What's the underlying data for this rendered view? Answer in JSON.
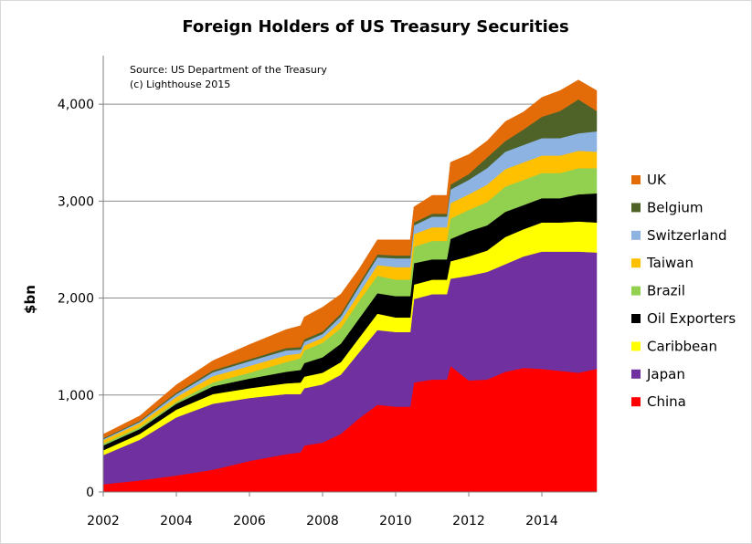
{
  "chart_data": {
    "type": "area",
    "stacked": true,
    "title": "Foreign Holders of US Treasury Securities",
    "ylabel": "$bn",
    "xlabel": "",
    "source_note": "Source: US Department of the Treasury",
    "copyright_note": "(c) Lighthouse 2015",
    "xlim": [
      2002,
      2015.5
    ],
    "ylim": [
      0,
      4500
    ],
    "x_ticks": [
      2002,
      2004,
      2006,
      2008,
      2010,
      2012,
      2014
    ],
    "x_tick_labels": [
      "2002",
      "2004",
      "2006",
      "2008",
      "2010",
      "2012",
      "2014"
    ],
    "y_ticks": [
      0,
      1000,
      2000,
      3000,
      4000
    ],
    "y_tick_labels": [
      "0",
      "1,000",
      "2,000",
      "3,000",
      "4,000"
    ],
    "grid": "horizontal",
    "legend_position": "right",
    "x": [
      2002.0,
      2003.0,
      2004.0,
      2005.0,
      2006.0,
      2007.0,
      2007.4,
      2007.5,
      2008.0,
      2008.5,
      2009.0,
      2009.5,
      2010.0,
      2010.4,
      2010.5,
      2011.0,
      2011.4,
      2011.5,
      2012.0,
      2012.5,
      2013.0,
      2013.5,
      2014.0,
      2014.5,
      2015.0,
      2015.5
    ],
    "series": [
      {
        "name": "China",
        "color": "#ff0000",
        "values": [
          80,
          120,
          170,
          230,
          320,
          390,
          410,
          480,
          510,
          600,
          760,
          900,
          880,
          880,
          1130,
          1160,
          1160,
          1300,
          1150,
          1160,
          1240,
          1280,
          1270,
          1250,
          1230,
          1270
        ]
      },
      {
        "name": "Japan",
        "color": "#7030a0",
        "values": [
          300,
          420,
          600,
          680,
          650,
          620,
          600,
          590,
          600,
          610,
          680,
          770,
          770,
          770,
          860,
          880,
          880,
          900,
          1080,
          1110,
          1110,
          1150,
          1210,
          1230,
          1250,
          1200
        ]
      },
      {
        "name": "Caribbean",
        "color": "#ffff00",
        "values": [
          50,
          60,
          80,
          100,
          100,
          110,
          120,
          120,
          120,
          130,
          150,
          170,
          150,
          150,
          150,
          150,
          150,
          180,
          200,
          220,
          280,
          280,
          300,
          300,
          310,
          310
        ]
      },
      {
        "name": "Oil Exporters",
        "color": "#000000",
        "values": [
          50,
          50,
          60,
          80,
          100,
          120,
          130,
          140,
          160,
          190,
          200,
          210,
          220,
          220,
          220,
          210,
          210,
          230,
          260,
          260,
          260,
          250,
          250,
          250,
          280,
          300
        ]
      },
      {
        "name": "Brazil",
        "color": "#92d050",
        "values": [
          20,
          20,
          20,
          40,
          60,
          100,
          120,
          130,
          150,
          160,
          180,
          180,
          170,
          170,
          170,
          190,
          190,
          210,
          220,
          240,
          260,
          260,
          260,
          260,
          270,
          260
        ]
      },
      {
        "name": "Taiwan",
        "color": "#ffc000",
        "values": [
          35,
          40,
          50,
          65,
          70,
          70,
          50,
          50,
          50,
          70,
          80,
          110,
          130,
          130,
          130,
          140,
          140,
          160,
          160,
          180,
          180,
          180,
          180,
          180,
          180,
          170
        ]
      },
      {
        "name": "Switzerland",
        "color": "#8db3e2",
        "values": [
          10,
          15,
          30,
          40,
          50,
          50,
          40,
          40,
          40,
          50,
          70,
          80,
          90,
          90,
          90,
          110,
          110,
          140,
          150,
          170,
          180,
          180,
          180,
          180,
          180,
          210
        ]
      },
      {
        "name": "Belgium",
        "color": "#4f6228",
        "values": [
          10,
          10,
          15,
          20,
          20,
          25,
          25,
          25,
          25,
          30,
          30,
          30,
          30,
          30,
          30,
          30,
          30,
          50,
          60,
          110,
          110,
          160,
          220,
          280,
          350,
          210
        ]
      },
      {
        "name": "UK",
        "color": "#e36c09",
        "values": [
          40,
          50,
          80,
          100,
          150,
          190,
          220,
          230,
          250,
          200,
          150,
          150,
          160,
          160,
          160,
          190,
          190,
          230,
          200,
          170,
          200,
          180,
          200,
          210,
          200,
          210
        ]
      }
    ],
    "legend_order": [
      "UK",
      "Belgium",
      "Switzerland",
      "Taiwan",
      "Brazil",
      "Oil Exporters",
      "Caribbean",
      "Japan",
      "China"
    ]
  }
}
